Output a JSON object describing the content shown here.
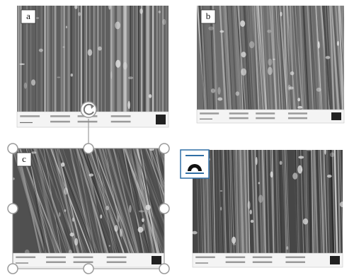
{
  "figure": {
    "panel_labels": [
      "a",
      "b",
      "c"
    ]
  }
}
